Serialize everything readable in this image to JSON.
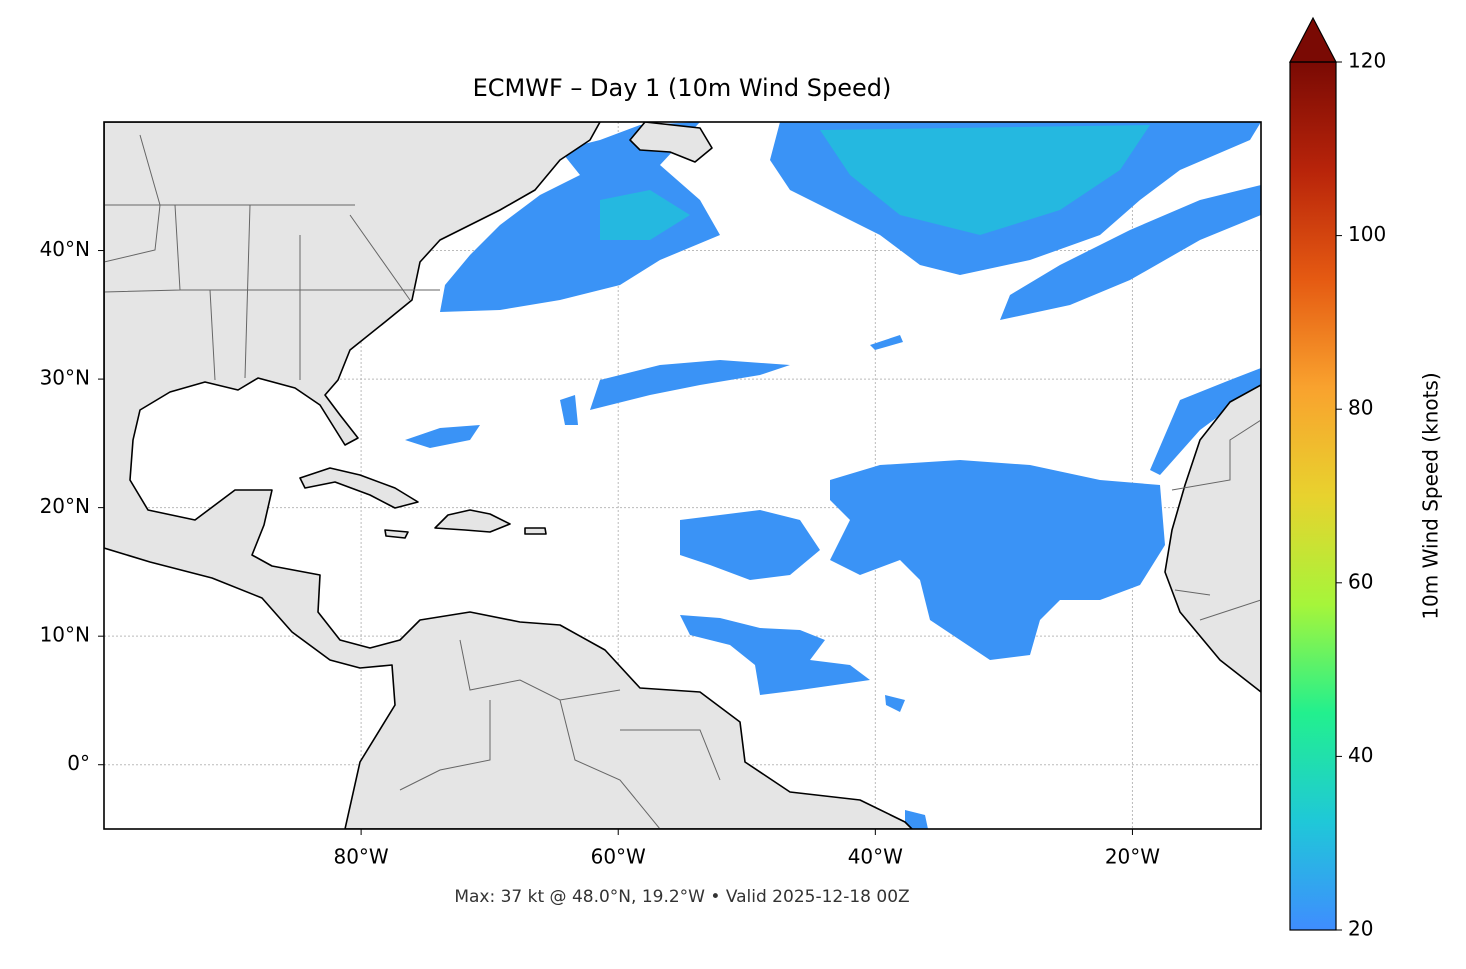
{
  "chart_data": {
    "type": "map",
    "title": "ECMWF – Day 1 (10m Wind Speed)",
    "note": "Max: 37 kt @ 48.0°N, 19.2°W • Valid 2025-12-18 00Z",
    "xlim": [
      -100,
      -10
    ],
    "ylim": [
      -5,
      50
    ],
    "xticks": [
      {
        "value": -80,
        "label": "80°W"
      },
      {
        "value": -60,
        "label": "60°W"
      },
      {
        "value": -40,
        "label": "40°W"
      },
      {
        "value": -20,
        "label": "20°W"
      }
    ],
    "yticks": [
      {
        "value": 0,
        "label": "0°"
      },
      {
        "value": 10,
        "label": "10°N"
      },
      {
        "value": 20,
        "label": "20°N"
      },
      {
        "value": 30,
        "label": "30°N"
      },
      {
        "value": 40,
        "label": "40°N"
      }
    ],
    "grid": true,
    "colorbar": {
      "label": "10m Wind Speed (knots)",
      "lim": [
        20,
        120
      ],
      "ticks": [
        20,
        40,
        60,
        80,
        100,
        120
      ],
      "colors": [
        "#3f8dff",
        "#1fc8d8",
        "#22f08e",
        "#a6f53a",
        "#e8d22e",
        "#f9a22e",
        "#e55a12",
        "#b8240a",
        "#7a0a04"
      ],
      "extend": "max"
    }
  }
}
